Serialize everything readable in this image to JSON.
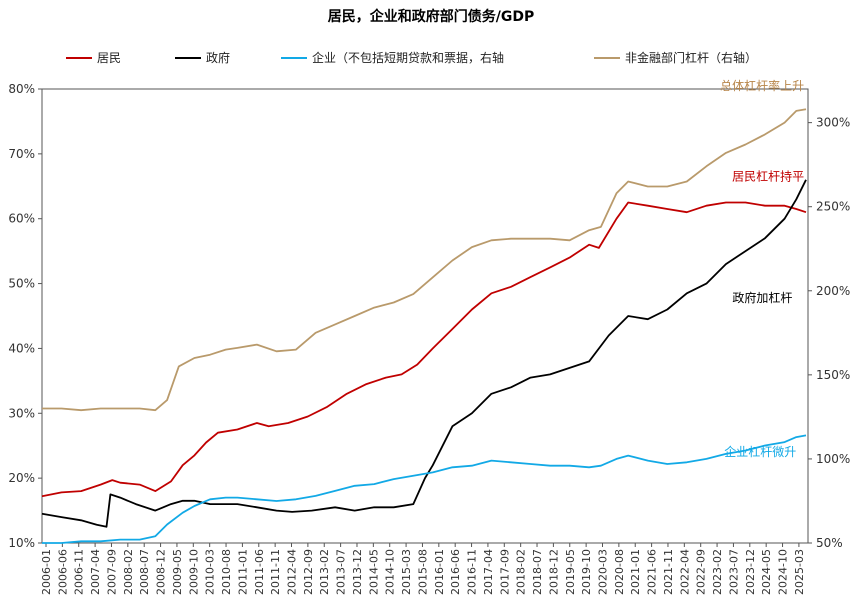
{
  "chart_data": {
    "type": "line",
    "title": "居民，企业和政府部门债务/GDP",
    "legend": {
      "placement": "top",
      "items": [
        {
          "label": "居民",
          "color": "#c00000"
        },
        {
          "label": "政府",
          "color": "#000000"
        },
        {
          "label": "企业（不包括短期贷款和票据，右轴",
          "color": "#12a9e6"
        },
        {
          "label": "非金融部门杠杆（右轴）",
          "color": "#b99a6b"
        }
      ]
    },
    "y_left": {
      "min": 10,
      "max": 80,
      "step": 10,
      "ticks": [
        "10%",
        "20%",
        "30%",
        "40%",
        "50%",
        "60%",
        "70%",
        "80%"
      ]
    },
    "y_right": {
      "min": 50,
      "max": 320,
      "ticks": [
        {
          "v": 50,
          "t": "50%"
        },
        {
          "v": 100,
          "t": "100%"
        },
        {
          "v": 150,
          "t": "150%"
        },
        {
          "v": 200,
          "t": "200%"
        },
        {
          "v": 250,
          "t": "250%"
        },
        {
          "v": 300,
          "t": "300%"
        }
      ]
    },
    "x_ticks": [
      "2006-01",
      "2006-06",
      "2006-11",
      "2007-04",
      "2007-09",
      "2008-02",
      "2008-07",
      "2008-12",
      "2009-05",
      "2009-10",
      "2010-03",
      "2010-08",
      "2011-01",
      "2011-06",
      "2011-11",
      "2012-04",
      "2012-09",
      "2013-02",
      "2013-07",
      "2013-12",
      "2014-05",
      "2014-10",
      "2015-03",
      "2015-08",
      "2016-01",
      "2016-06",
      "2016-11",
      "2017-04",
      "2017-09",
      "2018-02",
      "2018-07",
      "2018-12",
      "2019-05",
      "2019-10",
      "2020-03",
      "2020-08",
      "2021-01",
      "2021-06",
      "2021-11",
      "2022-04",
      "2022-09",
      "2023-02",
      "2023-07",
      "2023-12",
      "2024-05",
      "2024-10",
      "2025-03"
    ],
    "x_range": [
      2006.0,
      2025.6
    ],
    "series": [
      {
        "name": "居民",
        "axis": "left",
        "color": "#c00000",
        "x": [
          2006.0,
          2006.5,
          2007.0,
          2007.5,
          2007.8,
          2008.0,
          2008.5,
          2008.9,
          2009.3,
          2009.6,
          2009.9,
          2010.2,
          2010.5,
          2011.0,
          2011.5,
          2011.8,
          2012.3,
          2012.8,
          2013.3,
          2013.8,
          2014.3,
          2014.8,
          2015.2,
          2015.6,
          2016.0,
          2016.5,
          2017.0,
          2017.5,
          2018.0,
          2018.5,
          2019.0,
          2019.5,
          2020.0,
          2020.25,
          2020.7,
          2021.0,
          2021.5,
          2022.0,
          2022.5,
          2023.0,
          2023.5,
          2024.0,
          2024.5,
          2025.0,
          2025.3,
          2025.55
        ],
        "values": [
          17.2,
          17.8,
          18.0,
          19.0,
          19.7,
          19.3,
          19.0,
          18.0,
          19.5,
          22.0,
          23.5,
          25.5,
          27.0,
          27.5,
          28.5,
          28.0,
          28.5,
          29.5,
          31.0,
          33.0,
          34.5,
          35.5,
          36.0,
          37.5,
          40.0,
          43.0,
          46.0,
          48.5,
          49.5,
          51.0,
          52.5,
          54.0,
          56.0,
          55.5,
          60.0,
          62.5,
          62.0,
          61.5,
          61.0,
          62.0,
          62.5,
          62.5,
          62.0,
          62.0,
          61.5,
          61.0
        ]
      },
      {
        "name": "政府",
        "axis": "left",
        "color": "#000000",
        "x": [
          2006.0,
          2006.5,
          2007.0,
          2007.4,
          2007.65,
          2007.75,
          2008.0,
          2008.4,
          2008.9,
          2009.3,
          2009.6,
          2009.9,
          2010.3,
          2010.7,
          2011.0,
          2011.5,
          2012.0,
          2012.4,
          2012.9,
          2013.5,
          2014.0,
          2014.5,
          2015.0,
          2015.5,
          2015.8,
          2016.0,
          2016.5,
          2017.0,
          2017.5,
          2018.0,
          2018.5,
          2019.0,
          2019.5,
          2020.0,
          2020.5,
          2021.0,
          2021.5,
          2022.0,
          2022.5,
          2023.0,
          2023.5,
          2024.0,
          2024.5,
          2025.0,
          2025.3,
          2025.55
        ],
        "values": [
          14.5,
          14.0,
          13.5,
          12.8,
          12.5,
          17.5,
          17.0,
          16.0,
          15.0,
          16.0,
          16.5,
          16.5,
          16.0,
          16.0,
          16.0,
          15.5,
          15.0,
          14.8,
          15.0,
          15.5,
          15.0,
          15.5,
          15.5,
          16.0,
          20.0,
          22.0,
          28.0,
          30.0,
          33.0,
          34.0,
          35.5,
          36.0,
          37.0,
          38.0,
          42.0,
          45.0,
          44.5,
          46.0,
          48.5,
          50.0,
          53.0,
          55.0,
          57.0,
          60.0,
          63.0,
          66.0
        ]
      },
      {
        "name": "企业（不包括短期贷款和票据，右轴",
        "axis": "right",
        "color": "#12a9e6",
        "x": [
          2006.0,
          2006.5,
          2007.0,
          2007.5,
          2008.0,
          2008.5,
          2008.9,
          2009.2,
          2009.6,
          2009.9,
          2010.3,
          2010.7,
          2011.0,
          2011.5,
          2012.0,
          2012.5,
          2013.0,
          2013.5,
          2014.0,
          2014.5,
          2015.0,
          2015.5,
          2016.0,
          2016.5,
          2017.0,
          2017.5,
          2018.0,
          2018.5,
          2019.0,
          2019.5,
          2020.0,
          2020.3,
          2020.7,
          2021.0,
          2021.5,
          2022.0,
          2022.5,
          2023.0,
          2023.5,
          2024.0,
          2024.5,
          2025.0,
          2025.3,
          2025.55
        ],
        "values": [
          50,
          50,
          51,
          51,
          52,
          52,
          54,
          61,
          68,
          72,
          76,
          77,
          77,
          76,
          75,
          76,
          78,
          81,
          84,
          85,
          88,
          90,
          92,
          95,
          96,
          99,
          98,
          97,
          96,
          96,
          95,
          96,
          100,
          102,
          99,
          97,
          98,
          100,
          103,
          105,
          108,
          110,
          113,
          114
        ]
      },
      {
        "name": "非金融部门杠杆（右轴）",
        "axis": "right",
        "color": "#b99a6b",
        "x": [
          2006.0,
          2006.5,
          2007.0,
          2007.5,
          2008.0,
          2008.5,
          2008.9,
          2009.2,
          2009.5,
          2009.9,
          2010.3,
          2010.7,
          2011.0,
          2011.5,
          2012.0,
          2012.5,
          2013.0,
          2013.5,
          2014.0,
          2014.5,
          2015.0,
          2015.5,
          2016.0,
          2016.5,
          2017.0,
          2017.5,
          2018.0,
          2018.5,
          2019.0,
          2019.5,
          2020.0,
          2020.3,
          2020.7,
          2021.0,
          2021.5,
          2022.0,
          2022.5,
          2023.0,
          2023.5,
          2024.0,
          2024.5,
          2025.0,
          2025.3,
          2025.55
        ],
        "values": [
          130,
          130,
          129,
          130,
          130,
          130,
          129,
          135,
          155,
          160,
          162,
          165,
          166,
          168,
          164,
          165,
          175,
          180,
          185,
          190,
          193,
          198,
          208,
          218,
          226,
          230,
          231,
          231,
          231,
          230,
          236,
          238,
          258,
          265,
          262,
          262,
          265,
          274,
          282,
          287,
          293,
          300,
          307,
          308
        ]
      }
    ],
    "annotations": [
      {
        "text": "总体杠杆率上升",
        "color": "#b8864a",
        "x": 2025.5,
        "y": 80.5,
        "anchor": "end"
      },
      {
        "text": "居民杠杆持平",
        "color": "#c00000",
        "x": 2025.5,
        "y": 66.5,
        "anchor": "end"
      },
      {
        "text": "政府加杠杆",
        "color": "#000000",
        "x": 2025.2,
        "y": 47.8,
        "anchor": "end"
      },
      {
        "text": "企业杠杆微升",
        "color": "#12a9e6",
        "x": 2025.3,
        "y": 24.0,
        "anchor": "end"
      }
    ]
  }
}
